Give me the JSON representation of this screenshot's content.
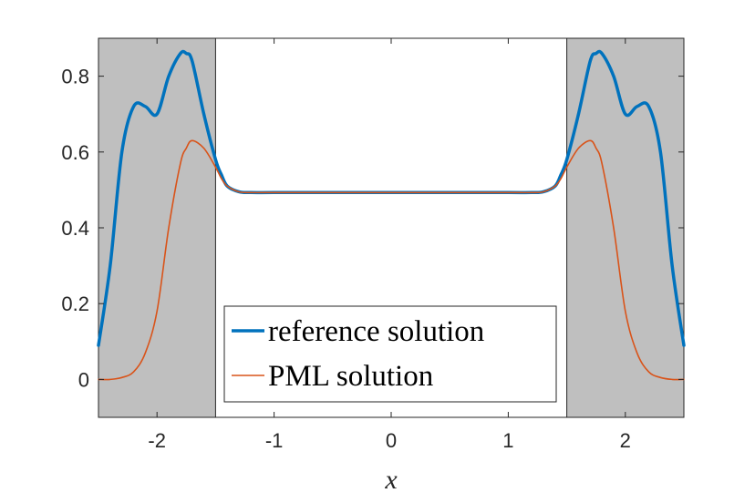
{
  "chart_data": {
    "type": "line",
    "title": "",
    "xlabel": "x",
    "ylabel": "",
    "xlim": [
      -2.5,
      2.5
    ],
    "ylim": [
      -0.1,
      0.9
    ],
    "xticks": [
      -2,
      -1,
      0,
      1,
      2
    ],
    "xtick_labels": [
      "-2",
      "-1",
      "0",
      "1",
      "2"
    ],
    "yticks": [
      0,
      0.2,
      0.4,
      0.6,
      0.8
    ],
    "ytick_labels": [
      "0",
      "0.2",
      "0.4",
      "0.6",
      "0.8"
    ],
    "grid": false,
    "legend_position": "bottom-center",
    "shaded_regions": [
      {
        "x_range": [
          -2.5,
          -1.5
        ],
        "color": "#bfbfbf"
      },
      {
        "x_range": [
          1.5,
          2.5
        ],
        "color": "#bfbfbf"
      }
    ],
    "x": [
      -2.5,
      -2.4,
      -2.3,
      -2.2,
      -2.1,
      -2.0,
      -1.9,
      -1.8,
      -1.75,
      -1.7,
      -1.6,
      -1.5,
      -1.45,
      -1.4,
      -1.3,
      -1.2,
      -1.0,
      -0.5,
      0,
      0.5,
      1.0,
      1.2,
      1.3,
      1.4,
      1.45,
      1.5,
      1.6,
      1.7,
      1.75,
      1.8,
      1.9,
      2.0,
      2.1,
      2.2,
      2.3,
      2.4,
      2.5
    ],
    "series": [
      {
        "name": "reference solution",
        "color": "#0072BD",
        "line_width": 3.5,
        "values": [
          0.09,
          0.3,
          0.6,
          0.72,
          0.72,
          0.7,
          0.8,
          0.86,
          0.86,
          0.84,
          0.7,
          0.58,
          0.54,
          0.51,
          0.495,
          0.493,
          0.493,
          0.493,
          0.493,
          0.493,
          0.493,
          0.493,
          0.495,
          0.51,
          0.54,
          0.58,
          0.7,
          0.84,
          0.86,
          0.86,
          0.8,
          0.7,
          0.72,
          0.72,
          0.6,
          0.3,
          0.09
        ]
      },
      {
        "name": "PML solution",
        "color": "#D95319",
        "line_width": 1.6,
        "values": [
          0.0,
          0.0,
          0.005,
          0.02,
          0.07,
          0.18,
          0.4,
          0.57,
          0.61,
          0.63,
          0.61,
          0.56,
          0.53,
          0.51,
          0.495,
          0.493,
          0.493,
          0.493,
          0.493,
          0.493,
          0.493,
          0.493,
          0.495,
          0.51,
          0.53,
          0.56,
          0.61,
          0.63,
          0.61,
          0.57,
          0.4,
          0.18,
          0.07,
          0.02,
          0.005,
          0.0,
          0.0
        ]
      }
    ]
  }
}
